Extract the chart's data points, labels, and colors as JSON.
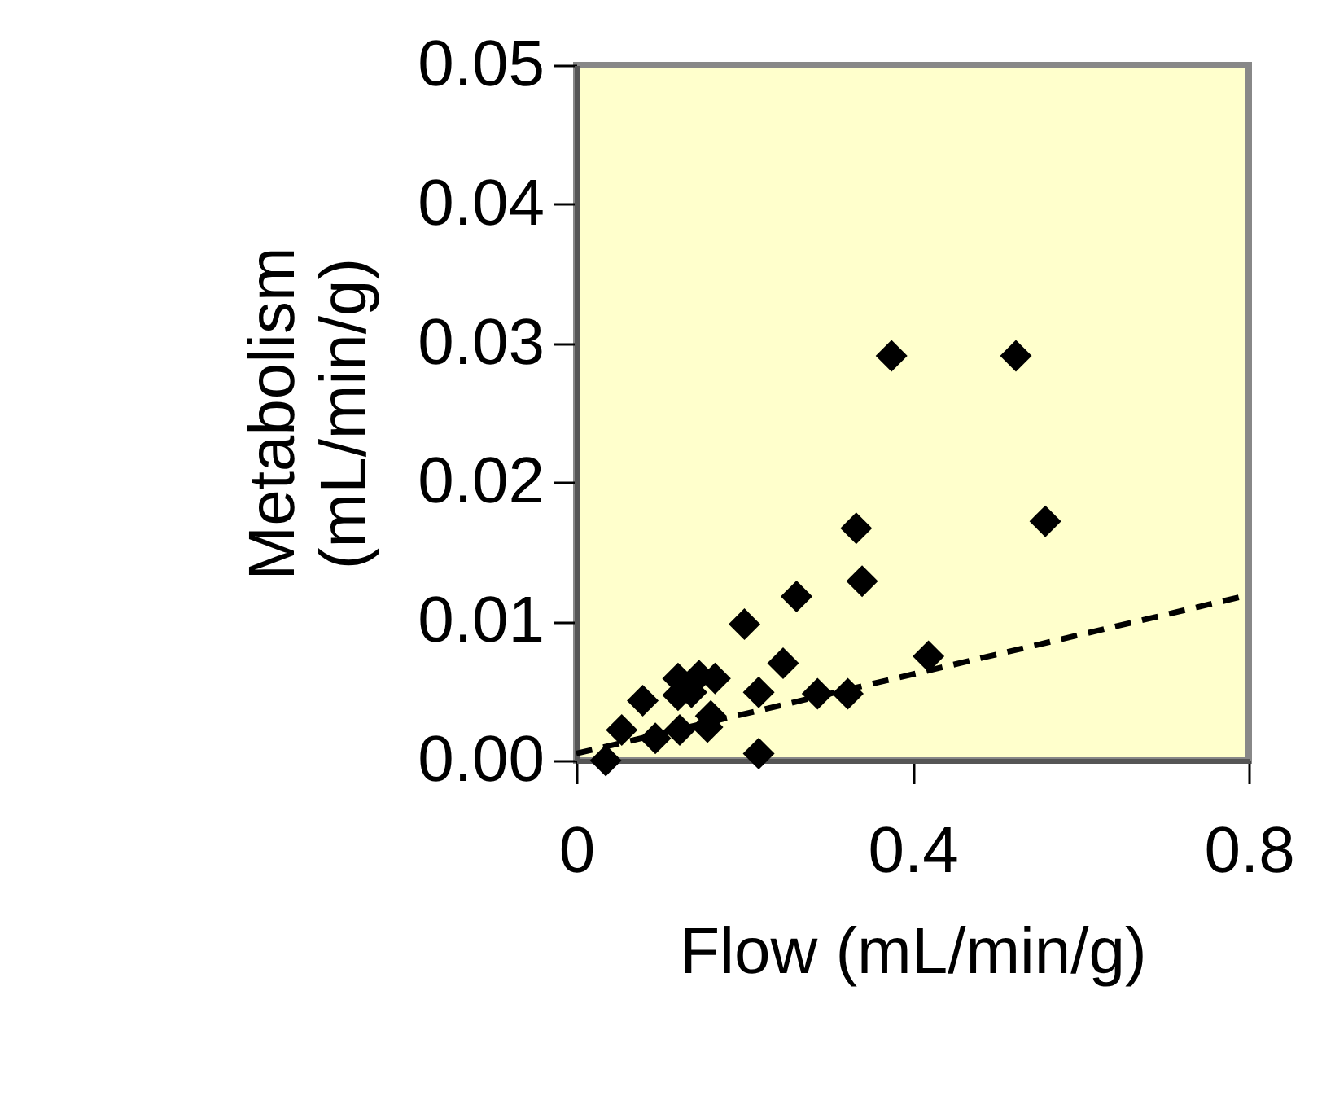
{
  "chart_data": {
    "type": "scatter",
    "xlabel": "Flow (mL/min/g)",
    "ylabel": "Metabolism\n(mL/min/g)",
    "xlim": [
      0,
      0.8
    ],
    "ylim": [
      0,
      0.05
    ],
    "xticks": [
      0,
      0.4,
      0.8
    ],
    "yticks": [
      {
        "value": 0,
        "label": "0.00"
      },
      {
        "value": 0.01,
        "label": "0.01"
      },
      {
        "value": 0.02,
        "label": "0.02"
      },
      {
        "value": 0.03,
        "label": "0.03"
      },
      {
        "value": 0.04,
        "label": "0.04"
      },
      {
        "value": 0.05,
        "label": "0.05"
      }
    ],
    "grid": false,
    "series": [
      {
        "color": "#000000",
        "marker": "diamond",
        "x": [
          0.035,
          0.054,
          0.079,
          0.094,
          0.121,
          0.146,
          0.165,
          0.121,
          0.137,
          0.16,
          0.156,
          0.123,
          0.2,
          0.217,
          0.217,
          0.246,
          0.262,
          0.287,
          0.323,
          0.333,
          0.34,
          0.419,
          0.375,
          0.523,
          0.558
        ],
        "values": [
          0.0,
          0.0022,
          0.0043,
          0.0016,
          0.0059,
          0.0061,
          0.0059,
          0.0047,
          0.0049,
          0.0032,
          0.0024,
          0.0022,
          0.0098,
          0.0049,
          0.0005,
          0.007,
          0.0118,
          0.0048,
          0.0048,
          0.0167,
          0.0129,
          0.0075,
          0.0291,
          0.0291,
          0.0172
        ]
      },
      {
        "type": "line",
        "color": "#000000",
        "line_style": "dashed",
        "marker": "none",
        "x": [
          0,
          0.8
        ],
        "values": [
          0.0005,
          0.0119
        ]
      }
    ]
  }
}
